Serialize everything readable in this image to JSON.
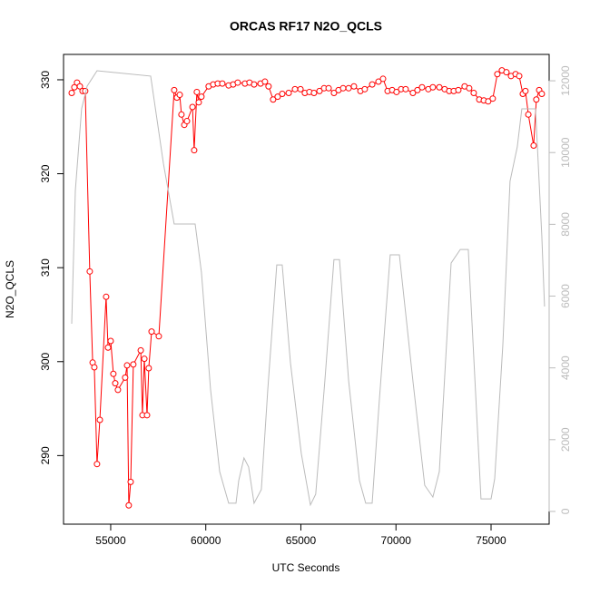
{
  "chart_data": {
    "type": "line",
    "title": "ORCAS RF17 N2O_QCLS",
    "xlabel": "UTC Seconds",
    "ylabel": "N2O_QCLS",
    "xlim": [
      52520,
      78055
    ],
    "xticks": [
      55000,
      60000,
      65000,
      70000,
      75000
    ],
    "ylim": [
      282.7,
      332.7
    ],
    "yticks": [
      290,
      300,
      310,
      320,
      330
    ],
    "y2lim": [
      -355,
      12735
    ],
    "y2ticks": [
      0,
      2000,
      4000,
      6000,
      8000,
      10000,
      12000
    ],
    "y2color": "#bbbbbb",
    "series": [
      {
        "color": "#ff0000",
        "markers": true,
        "axis": "y",
        "x": [
          52950,
          53090,
          53230,
          53380,
          53520,
          53660,
          53900,
          54050,
          54140,
          54280,
          54430,
          54760,
          54860,
          55000,
          55140,
          55240,
          55380,
          55760,
          55860,
          55950,
          56050,
          56190,
          56580,
          56670,
          56770,
          56910,
          57000,
          57150,
          57530,
          58340,
          58480,
          58630,
          58720,
          58870,
          59010,
          59300,
          59390,
          59530,
          59630,
          59770,
          60150,
          60390,
          60630,
          60870,
          61200,
          61440,
          61680,
          62060,
          62300,
          62540,
          62880,
          63110,
          63300,
          63540,
          63780,
          64020,
          64360,
          64690,
          64980,
          65210,
          65450,
          65690,
          65980,
          66220,
          66460,
          66740,
          66980,
          67220,
          67510,
          67790,
          68130,
          68360,
          68750,
          69080,
          69320,
          69560,
          69800,
          70030,
          70270,
          70510,
          70890,
          71130,
          71370,
          71700,
          71940,
          72280,
          72560,
          72800,
          73040,
          73280,
          73610,
          73850,
          74090,
          74380,
          74620,
          74850,
          75090,
          75330,
          75570,
          75810,
          76050,
          76290,
          76480,
          76670,
          76810,
          76960,
          77240,
          77380,
          77530,
          77670
        ],
        "values": [
          328.6,
          329.2,
          329.7,
          329.3,
          328.8,
          328.8,
          309.6,
          299.9,
          299.4,
          289.1,
          293.8,
          306.9,
          301.5,
          302.2,
          298.7,
          297.7,
          297.0,
          298.3,
          299.6,
          284.7,
          287.2,
          299.7,
          301.2,
          294.3,
          300.3,
          294.3,
          299.3,
          303.2,
          302.7,
          328.9,
          328.1,
          328.4,
          326.3,
          325.2,
          325.6,
          327.1,
          322.5,
          328.7,
          327.6,
          328.2,
          329.3,
          329.5,
          329.6,
          329.6,
          329.4,
          329.5,
          329.7,
          329.6,
          329.7,
          329.5,
          329.6,
          329.8,
          329.3,
          327.9,
          328.2,
          328.5,
          328.6,
          329.0,
          329.0,
          328.6,
          328.7,
          328.6,
          328.8,
          329.1,
          329.1,
          328.6,
          328.9,
          329.1,
          329.1,
          329.3,
          328.8,
          329.0,
          329.5,
          329.8,
          330.1,
          328.8,
          328.9,
          328.7,
          329.0,
          329.0,
          328.6,
          328.9,
          329.2,
          329.0,
          329.2,
          329.2,
          329.0,
          328.8,
          328.8,
          328.9,
          329.3,
          329.1,
          328.6,
          327.9,
          327.8,
          327.7,
          328.0,
          330.6,
          331.0,
          330.8,
          330.4,
          330.6,
          330.4,
          328.5,
          328.8,
          326.3,
          323.0,
          327.9,
          328.9,
          328.5
        ]
      },
      {
        "color": "#bbbbbb",
        "markers": false,
        "axis": "y2",
        "x": [
          52950,
          53140,
          53470,
          53760,
          54280,
          57100,
          57770,
          58340,
          59440,
          59770,
          60250,
          60730,
          61200,
          61590,
          61730,
          62010,
          62250,
          62540,
          62920,
          63260,
          63730,
          64020,
          64450,
          65020,
          65500,
          65780,
          66260,
          66740,
          67030,
          67510,
          68080,
          68410,
          68750,
          69130,
          69700,
          70180,
          70890,
          71510,
          71940,
          72280,
          72900,
          73380,
          73800,
          74470,
          75000,
          75190,
          75620,
          76000,
          76380,
          76620,
          77340,
          77670,
          77810
        ],
        "values": [
          5230,
          8940,
          11220,
          11850,
          12280,
          12130,
          9700,
          8010,
          8010,
          6670,
          3390,
          1110,
          230,
          230,
          860,
          1490,
          1240,
          230,
          610,
          3390,
          6870,
          6870,
          4140,
          1620,
          180,
          480,
          3640,
          7020,
          7020,
          3640,
          860,
          230,
          230,
          3130,
          7150,
          7150,
          3640,
          730,
          400,
          1110,
          6920,
          7300,
          7300,
          350,
          350,
          910,
          4650,
          9200,
          10160,
          11220,
          11220,
          7680,
          5710
        ]
      }
    ]
  }
}
